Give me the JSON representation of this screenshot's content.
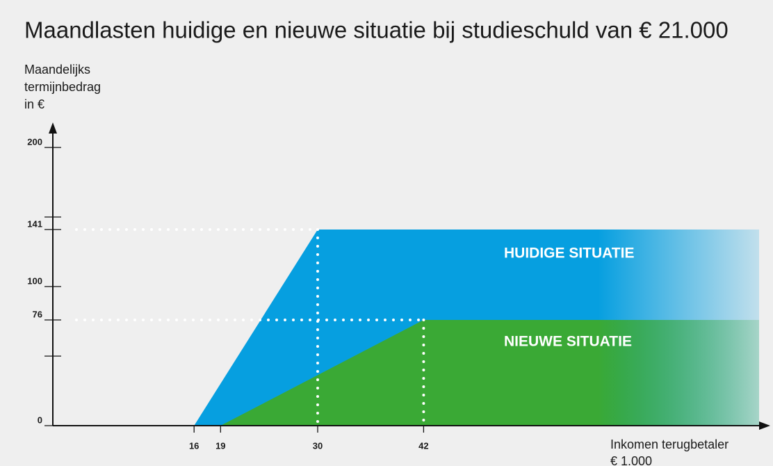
{
  "chart_data": {
    "type": "area",
    "title": "Maandlasten huidige en nieuwe situatie bij studieschuld van € 21.000",
    "y_label": [
      "Maandelijks",
      "termijnbedrag",
      "in €"
    ],
    "x_label": [
      "Inkomen terugbetaler",
      "€ 1.000"
    ],
    "series": [
      {
        "name": "HUIDIGE SITUATIE",
        "color": "#069fe0",
        "x": [
          16,
          30,
          80
        ],
        "values": [
          0,
          141,
          141
        ]
      },
      {
        "name": "NIEUWE SITUATIE",
        "color": "#3aa935",
        "x": [
          19,
          42,
          80
        ],
        "values": [
          0,
          76,
          76
        ]
      }
    ],
    "xlim": [
      0,
      80
    ],
    "ylim": [
      0,
      200
    ],
    "xticks": [
      16,
      19,
      30,
      42
    ],
    "yticks": [
      0,
      76,
      100,
      141,
      200
    ],
    "y_minor_ticks": [
      50,
      150
    ]
  }
}
